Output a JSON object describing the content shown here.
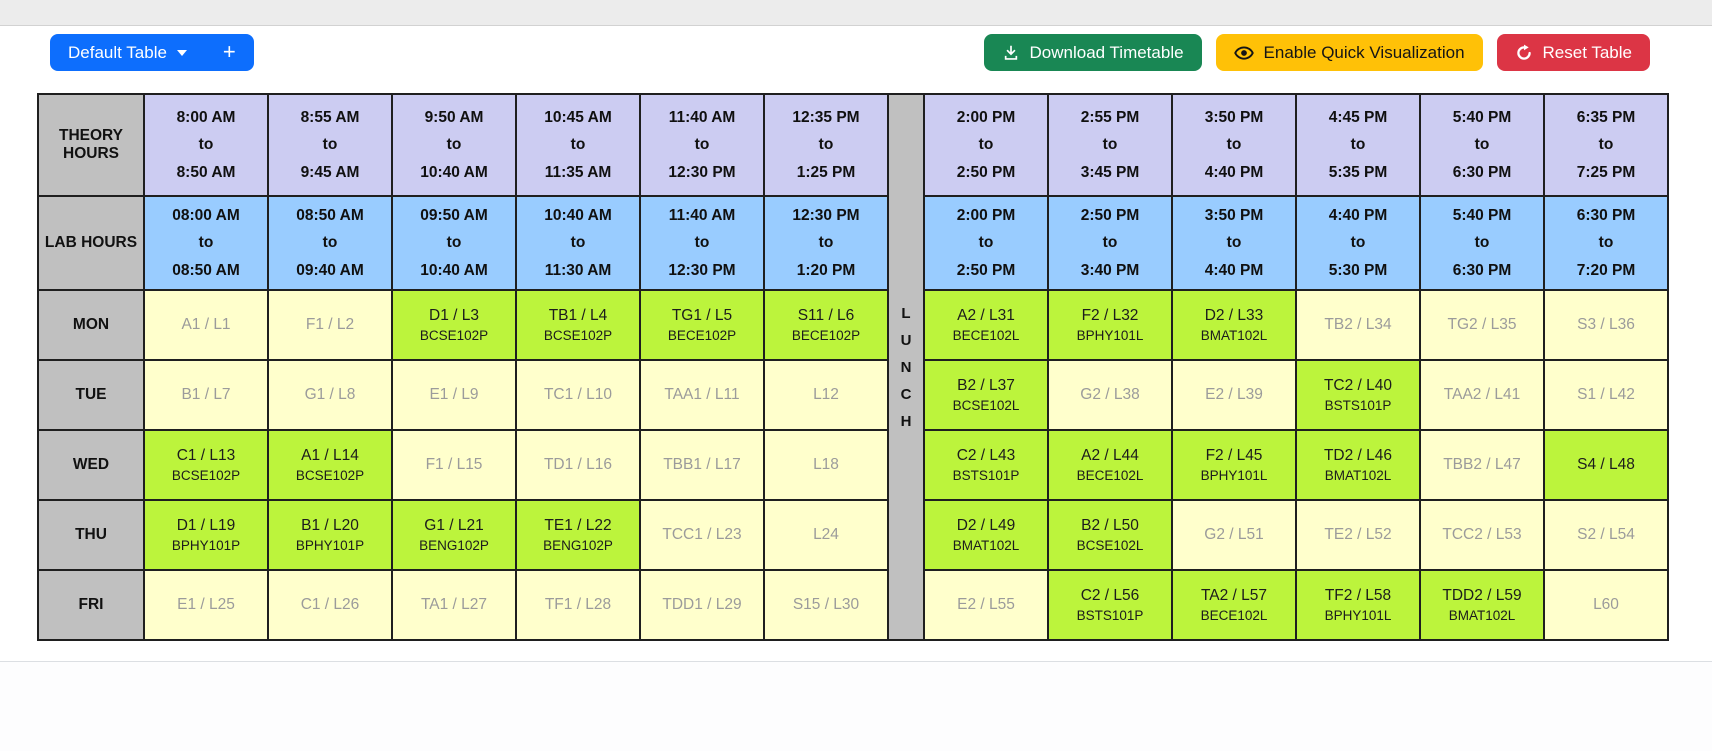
{
  "toolbar": {
    "table_selector_label": "Default Table",
    "add_label": "+",
    "download_label": "Download Timetable",
    "quick_viz_label": "Enable Quick Visualization",
    "reset_label": "Reset Table"
  },
  "colors": {
    "primary": "#0d6efd",
    "success": "#198754",
    "warning": "#ffc107",
    "danger": "#dc3545",
    "theory_bg": "#ccccf2",
    "lab_bg": "#99ccff",
    "header_gray": "#c0c0c0",
    "slot_empty_bg": "#ffffcc",
    "slot_selected_bg": "#bcf43c",
    "empty_text": "#9b9b9b",
    "table_border": "#1f1f1f",
    "top_strip_bg": "#ececec",
    "top_strip_border": "#d2d2d2",
    "footer_line": "#dcdfe3"
  },
  "timetable": {
    "corner_labels": {
      "theory": "THEORY HOURS",
      "lab": "LAB HOURS"
    },
    "to_label": "to",
    "lunch_letters": [
      "L",
      "U",
      "N",
      "C",
      "H"
    ],
    "theory_slots": [
      {
        "start": "8:00 AM",
        "end": "8:50 AM"
      },
      {
        "start": "8:55 AM",
        "end": "9:45 AM"
      },
      {
        "start": "9:50 AM",
        "end": "10:40 AM"
      },
      {
        "start": "10:45 AM",
        "end": "11:35 AM"
      },
      {
        "start": "11:40 AM",
        "end": "12:30 PM"
      },
      {
        "start": "12:35 PM",
        "end": "1:25 PM"
      },
      {
        "start": "2:00 PM",
        "end": "2:50 PM"
      },
      {
        "start": "2:55 PM",
        "end": "3:45 PM"
      },
      {
        "start": "3:50 PM",
        "end": "4:40 PM"
      },
      {
        "start": "4:45 PM",
        "end": "5:35 PM"
      },
      {
        "start": "5:40 PM",
        "end": "6:30 PM"
      },
      {
        "start": "6:35 PM",
        "end": "7:25 PM"
      }
    ],
    "lab_slots": [
      {
        "start": "08:00 AM",
        "end": "08:50 AM"
      },
      {
        "start": "08:50 AM",
        "end": "09:40 AM"
      },
      {
        "start": "09:50 AM",
        "end": "10:40 AM"
      },
      {
        "start": "10:40 AM",
        "end": "11:30 AM"
      },
      {
        "start": "11:40 AM",
        "end": "12:30 PM"
      },
      {
        "start": "12:30 PM",
        "end": "1:20 PM"
      },
      {
        "start": "2:00 PM",
        "end": "2:50 PM"
      },
      {
        "start": "2:50 PM",
        "end": "3:40 PM"
      },
      {
        "start": "3:50 PM",
        "end": "4:40 PM"
      },
      {
        "start": "4:40 PM",
        "end": "5:30 PM"
      },
      {
        "start": "5:40 PM",
        "end": "6:30 PM"
      },
      {
        "start": "6:30 PM",
        "end": "7:20 PM"
      }
    ],
    "days": [
      {
        "label": "MON",
        "cells": [
          {
            "slot": "A1 / L1",
            "code": "",
            "selected": false
          },
          {
            "slot": "F1 / L2",
            "code": "",
            "selected": false
          },
          {
            "slot": "D1 / L3",
            "code": "BCSE102P",
            "selected": true
          },
          {
            "slot": "TB1 / L4",
            "code": "BCSE102P",
            "selected": true
          },
          {
            "slot": "TG1 / L5",
            "code": "BECE102P",
            "selected": true
          },
          {
            "slot": "S11 / L6",
            "code": "BECE102P",
            "selected": true
          },
          {
            "slot": "A2 / L31",
            "code": "BECE102L",
            "selected": true
          },
          {
            "slot": "F2 / L32",
            "code": "BPHY101L",
            "selected": true
          },
          {
            "slot": "D2 / L33",
            "code": "BMAT102L",
            "selected": true
          },
          {
            "slot": "TB2 / L34",
            "code": "",
            "selected": false
          },
          {
            "slot": "TG2 / L35",
            "code": "",
            "selected": false
          },
          {
            "slot": "S3 / L36",
            "code": "",
            "selected": false
          }
        ]
      },
      {
        "label": "TUE",
        "cells": [
          {
            "slot": "B1 / L7",
            "code": "",
            "selected": false
          },
          {
            "slot": "G1 / L8",
            "code": "",
            "selected": false
          },
          {
            "slot": "E1 / L9",
            "code": "",
            "selected": false
          },
          {
            "slot": "TC1 / L10",
            "code": "",
            "selected": false
          },
          {
            "slot": "TAA1 / L11",
            "code": "",
            "selected": false
          },
          {
            "slot": "L12",
            "code": "",
            "selected": false
          },
          {
            "slot": "B2 / L37",
            "code": "BCSE102L",
            "selected": true
          },
          {
            "slot": "G2 / L38",
            "code": "",
            "selected": false
          },
          {
            "slot": "E2 / L39",
            "code": "",
            "selected": false
          },
          {
            "slot": "TC2 / L40",
            "code": "BSTS101P",
            "selected": true
          },
          {
            "slot": "TAA2 / L41",
            "code": "",
            "selected": false
          },
          {
            "slot": "S1 / L42",
            "code": "",
            "selected": false
          }
        ]
      },
      {
        "label": "WED",
        "cells": [
          {
            "slot": "C1 / L13",
            "code": "BCSE102P",
            "selected": true
          },
          {
            "slot": "A1 / L14",
            "code": "BCSE102P",
            "selected": true
          },
          {
            "slot": "F1 / L15",
            "code": "",
            "selected": false
          },
          {
            "slot": "TD1 / L16",
            "code": "",
            "selected": false
          },
          {
            "slot": "TBB1 / L17",
            "code": "",
            "selected": false
          },
          {
            "slot": "L18",
            "code": "",
            "selected": false
          },
          {
            "slot": "C2 / L43",
            "code": "BSTS101P",
            "selected": true
          },
          {
            "slot": "A2 / L44",
            "code": "BECE102L",
            "selected": true
          },
          {
            "slot": "F2 / L45",
            "code": "BPHY101L",
            "selected": true
          },
          {
            "slot": "TD2 / L46",
            "code": "BMAT102L",
            "selected": true
          },
          {
            "slot": "TBB2 / L47",
            "code": "",
            "selected": false
          },
          {
            "slot": "S4 / L48",
            "code": "",
            "selected": true
          }
        ]
      },
      {
        "label": "THU",
        "cells": [
          {
            "slot": "D1 / L19",
            "code": "BPHY101P",
            "selected": true
          },
          {
            "slot": "B1 / L20",
            "code": "BPHY101P",
            "selected": true
          },
          {
            "slot": "G1 / L21",
            "code": "BENG102P",
            "selected": true
          },
          {
            "slot": "TE1 / L22",
            "code": "BENG102P",
            "selected": true
          },
          {
            "slot": "TCC1 / L23",
            "code": "",
            "selected": false
          },
          {
            "slot": "L24",
            "code": "",
            "selected": false
          },
          {
            "slot": "D2 / L49",
            "code": "BMAT102L",
            "selected": true
          },
          {
            "slot": "B2 / L50",
            "code": "BCSE102L",
            "selected": true
          },
          {
            "slot": "G2 / L51",
            "code": "",
            "selected": false
          },
          {
            "slot": "TE2 / L52",
            "code": "",
            "selected": false
          },
          {
            "slot": "TCC2 / L53",
            "code": "",
            "selected": false
          },
          {
            "slot": "S2 / L54",
            "code": "",
            "selected": false
          }
        ]
      },
      {
        "label": "FRI",
        "cells": [
          {
            "slot": "E1 / L25",
            "code": "",
            "selected": false
          },
          {
            "slot": "C1 / L26",
            "code": "",
            "selected": false
          },
          {
            "slot": "TA1 / L27",
            "code": "",
            "selected": false
          },
          {
            "slot": "TF1 / L28",
            "code": "",
            "selected": false
          },
          {
            "slot": "TDD1 / L29",
            "code": "",
            "selected": false
          },
          {
            "slot": "S15 / L30",
            "code": "",
            "selected": false
          },
          {
            "slot": "E2 / L55",
            "code": "",
            "selected": false
          },
          {
            "slot": "C2 / L56",
            "code": "BSTS101P",
            "selected": true
          },
          {
            "slot": "TA2 / L57",
            "code": "BECE102L",
            "selected": true
          },
          {
            "slot": "TF2 / L58",
            "code": "BPHY101L",
            "selected": true
          },
          {
            "slot": "TDD2 / L59",
            "code": "BMAT102L",
            "selected": true
          },
          {
            "slot": "L60",
            "code": "",
            "selected": false
          }
        ]
      }
    ]
  }
}
